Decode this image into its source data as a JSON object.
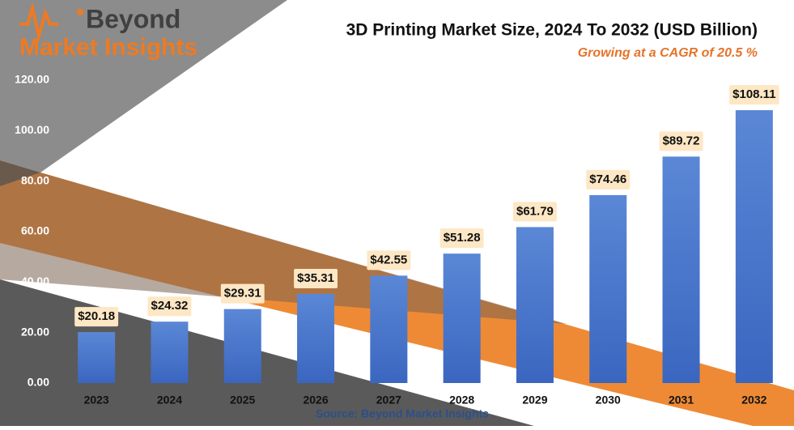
{
  "logo": {
    "line1": "Beyond",
    "line2": "Market Insights"
  },
  "chart_data": {
    "type": "bar",
    "title": "3D Printing Market Size, 2024 To 2032 (USD Billion)",
    "subtitle": "Growing at a CAGR of 20.5 %",
    "source": "Source: Beyond Market Insights",
    "categories": [
      "2023",
      "2024",
      "2025",
      "2026",
      "2027",
      "2028",
      "2029",
      "2030",
      "2031",
      "2032"
    ],
    "values": [
      20.18,
      24.32,
      29.31,
      35.31,
      42.55,
      51.28,
      61.79,
      74.46,
      89.72,
      108.11
    ],
    "value_labels": [
      "$20.18",
      "$24.32",
      "$29.31",
      "$35.31",
      "$42.55",
      "$51.28",
      "$61.79",
      "$74.46",
      "$89.72",
      "$108.11"
    ],
    "color": "#4a78cc",
    "ylim": [
      0,
      120
    ],
    "yticks": [
      {
        "value": 0,
        "label": "0.00"
      },
      {
        "value": 20,
        "label": "20.00"
      },
      {
        "value": 40,
        "label": "40.00"
      },
      {
        "value": 60,
        "label": "60.00"
      },
      {
        "value": 80,
        "label": "80.00"
      },
      {
        "value": 100,
        "label": "100.00"
      },
      {
        "value": 120,
        "label": "120.00"
      }
    ],
    "grid": false
  }
}
